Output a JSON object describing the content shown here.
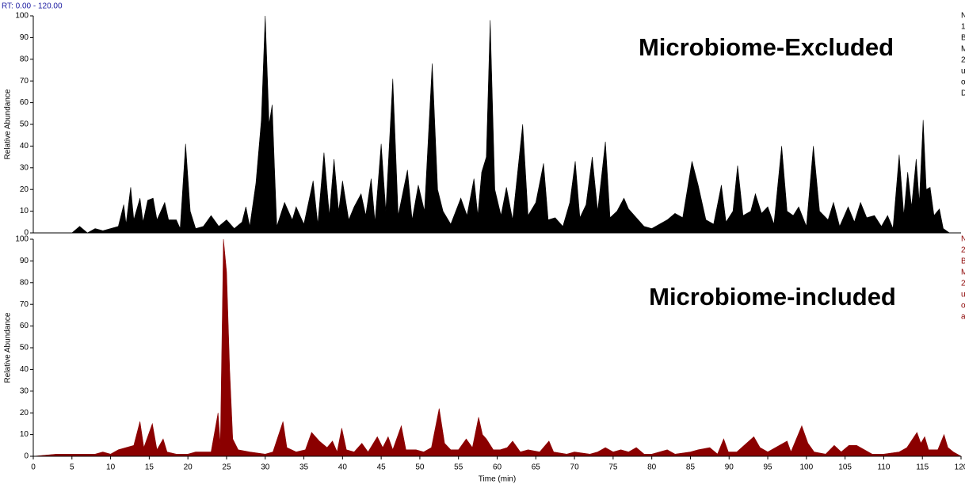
{
  "header": {
    "range_label": "RT: 0.00 - 120.00"
  },
  "chart_data": [
    {
      "type": "area",
      "title": "Microbiome-Excluded",
      "y_label": "Relative Abundance",
      "side_labels": [
        "N",
        "1",
        "B",
        "M",
        "2",
        "u",
        "o",
        "D"
      ],
      "side_color": "#000000",
      "xlim": [
        0,
        120
      ],
      "ylim": [
        0,
        100
      ],
      "yticks": [
        0,
        10,
        20,
        30,
        40,
        50,
        60,
        70,
        80,
        90,
        100
      ],
      "x": [
        0,
        5,
        6,
        7,
        8,
        9,
        10,
        11,
        11.7,
        12,
        12.6,
        13,
        13.8,
        14.2,
        14.8,
        15.5,
        16,
        17,
        17.5,
        18.5,
        19,
        19.7,
        20.3,
        21,
        22,
        23,
        24,
        25,
        26,
        27,
        27.5,
        28,
        28.8,
        29.5,
        30,
        30.5,
        30.9,
        31.2,
        31.5,
        32.5,
        33.5,
        34,
        35,
        36.2,
        36.8,
        37.6,
        38.3,
        38.9,
        39.5,
        40,
        40.8,
        41.5,
        42.4,
        43,
        43.7,
        44.2,
        45,
        45.6,
        46.5,
        47.2,
        48.4,
        49,
        49.8,
        50.6,
        51.6,
        52.3,
        53,
        54,
        55.3,
        56.1,
        57,
        57.5,
        58,
        58.6,
        59.1,
        59.7,
        60.5,
        61.2,
        62,
        63.3,
        64,
        65,
        66,
        66.6,
        67.5,
        68.5,
        69.4,
        70.1,
        70.7,
        71.5,
        72.3,
        73,
        74,
        74.6,
        75.5,
        76.4,
        77,
        78,
        79,
        80,
        81,
        82,
        83,
        84,
        85.2,
        86,
        87,
        88,
        89,
        89.6,
        90.5,
        91.1,
        91.8,
        92.8,
        93.4,
        94.2,
        95,
        95.8,
        96.8,
        97.5,
        98.3,
        99,
        100,
        100.9,
        101.7,
        102.8,
        103.5,
        104.3,
        105.4,
        106.2,
        107,
        107.8,
        108.8,
        109.7,
        110.5,
        111.2,
        112,
        112.6,
        113.1,
        113.6,
        114.2,
        114.6,
        115.1,
        115.5,
        116,
        116.5,
        117.2,
        117.7,
        118.5,
        120
      ],
      "series": [
        {
          "color": "#000000",
          "values": [
            0,
            0,
            3,
            0,
            2,
            1,
            2,
            3,
            13,
            4,
            21,
            6,
            16,
            5,
            15,
            16,
            6,
            14,
            6,
            6,
            2,
            41,
            10,
            2,
            3,
            8,
            3,
            6,
            2,
            5,
            12,
            3,
            23,
            52,
            100,
            50,
            59,
            30,
            3,
            14,
            6,
            12,
            4,
            24,
            4,
            37,
            8,
            34,
            10,
            24,
            6,
            12,
            18,
            8,
            25,
            5,
            41,
            10,
            71,
            8,
            29,
            6,
            22,
            10,
            78,
            20,
            10,
            4,
            16,
            8,
            25,
            8,
            28,
            35,
            98,
            20,
            8,
            21,
            6,
            50,
            8,
            14,
            32,
            6,
            7,
            3,
            14,
            33,
            7,
            13,
            35,
            10,
            42,
            7,
            10,
            16,
            11,
            7,
            3,
            2,
            4,
            6,
            9,
            7,
            33,
            22,
            6,
            4,
            22,
            5,
            10,
            31,
            8,
            10,
            18,
            9,
            12,
            4,
            40,
            10,
            8,
            12,
            3,
            40,
            10,
            6,
            14,
            3,
            12,
            5,
            14,
            7,
            8,
            3,
            8,
            2,
            36,
            8,
            28,
            12,
            34,
            14,
            52,
            20,
            21,
            8,
            11,
            2,
            0,
            0
          ]
        }
      ]
    },
    {
      "type": "area",
      "title": "Microbiome-included",
      "y_label": "Relative Abundance",
      "x_label": "Time (min)",
      "side_labels": [
        "N",
        "2",
        "B",
        "M",
        "2",
        "u",
        "o",
        "a"
      ],
      "side_color": "#8b0000",
      "xlim": [
        0,
        120
      ],
      "ylim": [
        0,
        100
      ],
      "yticks": [
        0,
        10,
        20,
        30,
        40,
        50,
        60,
        70,
        80,
        90,
        100
      ],
      "xticks": [
        0,
        5,
        10,
        15,
        20,
        25,
        30,
        35,
        40,
        45,
        50,
        55,
        60,
        65,
        70,
        75,
        80,
        85,
        90,
        95,
        100,
        105,
        110,
        115,
        120
      ],
      "x": [
        0,
        3,
        8,
        9,
        10,
        11,
        12,
        13,
        13.8,
        14.3,
        15.4,
        16,
        16.8,
        17.3,
        18.5,
        20,
        21,
        23,
        23.9,
        24.2,
        24.6,
        25,
        25.4,
        25.8,
        26.5,
        28,
        30,
        31,
        32.3,
        32.8,
        34,
        35.2,
        36,
        37,
        38,
        38.7,
        39.3,
        39.9,
        40.5,
        41.5,
        42.5,
        43.3,
        44.5,
        45.2,
        45.9,
        46.5,
        47.6,
        48.2,
        49.5,
        50.5,
        51.5,
        52.5,
        53.2,
        54,
        55,
        56,
        56.8,
        57.6,
        58.1,
        58.6,
        59.5,
        60.4,
        61.3,
        62,
        63,
        64,
        65.5,
        66.7,
        67.3,
        69,
        70,
        72,
        73,
        74,
        75,
        76,
        77,
        78,
        79,
        80,
        82,
        83,
        85,
        86,
        87.5,
        88.5,
        89.3,
        89.9,
        91,
        93.2,
        94,
        95,
        97.5,
        98,
        99.4,
        100.2,
        101,
        102.5,
        103.6,
        104.5,
        105.5,
        106.5,
        107.5,
        108.5,
        110,
        112,
        113,
        114.3,
        114.8,
        115.3,
        115.8,
        117,
        117.8,
        118.3,
        119,
        120
      ],
      "series": [
        {
          "color": "#8b0000",
          "values": [
            0,
            1,
            1,
            2,
            1,
            3,
            4,
            5,
            16,
            4,
            15,
            3,
            8,
            2,
            1,
            1,
            2,
            2,
            20,
            5,
            100,
            85,
            40,
            8,
            3,
            2,
            1,
            2,
            16,
            4,
            2,
            3,
            11,
            7,
            4,
            7,
            2,
            13,
            3,
            2,
            6,
            2,
            9,
            4,
            9,
            3,
            14,
            3,
            3,
            2,
            4,
            22,
            6,
            3,
            3,
            8,
            4,
            18,
            10,
            8,
            3,
            3,
            4,
            7,
            2,
            3,
            2,
            7,
            2,
            1,
            2,
            1,
            2,
            4,
            2,
            3,
            2,
            4,
            1,
            1,
            3,
            1,
            2,
            3,
            4,
            1,
            8,
            2,
            2,
            9,
            4,
            2,
            7,
            2,
            14,
            6,
            2,
            1,
            5,
            2,
            5,
            5,
            3,
            1,
            1,
            2,
            4,
            11,
            6,
            9,
            3,
            3,
            10,
            4,
            2,
            0
          ]
        }
      ]
    }
  ]
}
